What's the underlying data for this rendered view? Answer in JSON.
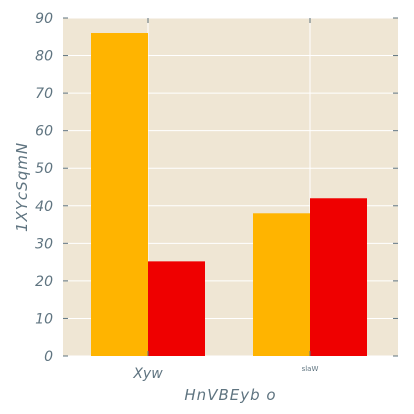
{
  "chart_data": {
    "type": "bar",
    "categories": [
      "Xyw",
      "slaW"
    ],
    "series": [
      {
        "values": [
          86,
          25.2
        ]
      },
      {
        "values": [
          38,
          42
        ]
      }
    ],
    "xlabel": "HnVBEyb o",
    "ylabel": "1XYcSqmN",
    "ylim": [
      0,
      90
    ],
    "yticks": [
      0,
      10,
      20,
      30,
      40,
      50,
      60,
      70,
      80,
      90
    ],
    "grid": true,
    "colors": {
      "background": "#efe6d4",
      "grid": "#ffffff",
      "orange": "#ffb400",
      "red": "#ef0000",
      "axis_text": "#5f7480"
    }
  }
}
